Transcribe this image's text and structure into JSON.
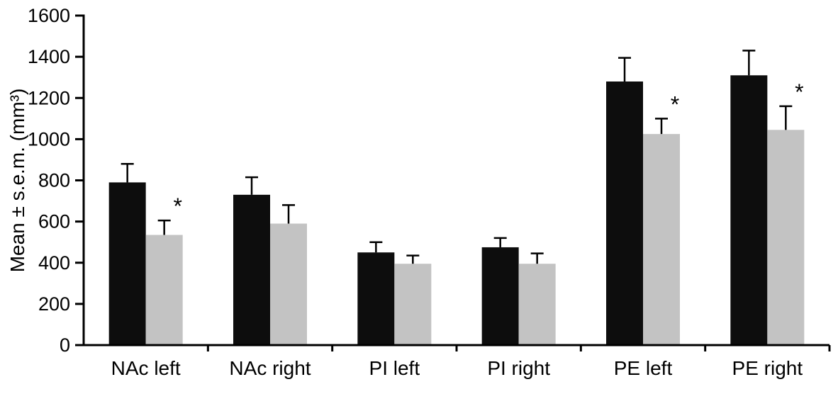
{
  "figure": {
    "background": "#ffffff"
  },
  "chart_data": {
    "type": "bar",
    "title": "",
    "xlabel": "",
    "ylabel": "Mean ± s.e.m. (mm³)",
    "ylim": [
      0,
      1600
    ],
    "ytick_step": 200,
    "grid": false,
    "legend": "none",
    "significance_marker": "*",
    "axis_color": "#000000",
    "categories": [
      "NAc left",
      "NAc right",
      "PI left",
      "PI right",
      "PE left",
      "PE right"
    ],
    "series": [
      {
        "name": "black-bars",
        "color": "#0d0d0d",
        "values": [
          790,
          730,
          450,
          475,
          1280,
          1310
        ],
        "errors": [
          90,
          85,
          50,
          45,
          115,
          120
        ],
        "significant": [
          false,
          false,
          false,
          false,
          false,
          false
        ]
      },
      {
        "name": "gray-bars",
        "color": "#c3c3c3",
        "values": [
          535,
          590,
          395,
          395,
          1025,
          1045
        ],
        "errors": [
          70,
          90,
          40,
          50,
          75,
          115
        ],
        "significant": [
          true,
          false,
          false,
          false,
          true,
          true
        ]
      }
    ]
  }
}
